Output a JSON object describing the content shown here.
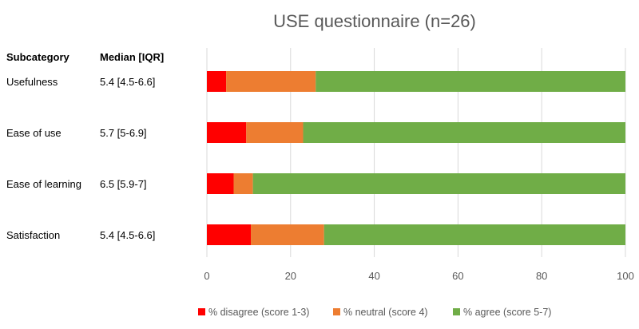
{
  "chart_data": {
    "type": "bar",
    "orientation": "horizontal",
    "stacked": true,
    "title": "USE questionnaire (n=26)",
    "table_headers": {
      "subcategory": "Subcategory",
      "median": "Median [IQR]"
    },
    "categories": [
      "Usefulness",
      "Ease of use",
      "Ease of learning",
      "Satisfaction"
    ],
    "medians": [
      "5.4 [4.5-6.6]",
      "5.7 [5-6.9]",
      "6.5 [5.9-7]",
      "5.4 [4.5-6.6]"
    ],
    "series": [
      {
        "name": "% disagree (score 1-3)",
        "color": "#ff0000",
        "values": [
          4.6,
          9.4,
          6.4,
          10.5
        ]
      },
      {
        "name": "% neutral (score 4)",
        "color": "#ed7d31",
        "values": [
          21.4,
          13.6,
          4.6,
          17.5
        ]
      },
      {
        "name": "% agree (score 5-7)",
        "color": "#70ad47",
        "values": [
          74.0,
          77.0,
          89.0,
          72.0
        ]
      }
    ],
    "xlim": [
      0,
      100
    ],
    "xticks": [
      0,
      20,
      40,
      60,
      80,
      100
    ],
    "grid": "vertical",
    "legend_position": "bottom"
  }
}
